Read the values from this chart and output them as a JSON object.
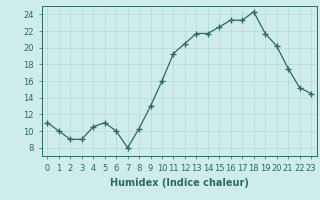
{
  "x": [
    0,
    1,
    2,
    3,
    4,
    5,
    6,
    7,
    8,
    9,
    10,
    11,
    12,
    13,
    14,
    15,
    16,
    17,
    18,
    19,
    20,
    21,
    22,
    23
  ],
  "y": [
    11,
    10,
    9,
    9,
    10.5,
    11,
    10,
    8,
    10.3,
    13,
    16,
    19.3,
    20.5,
    21.7,
    21.7,
    22.5,
    23.3,
    23.3,
    24.3,
    21.7,
    20.2,
    17.5,
    15.2,
    14.5
  ],
  "line_color": "#2d6b5e",
  "bg_color": "#cdecea",
  "grid_color": "#b5d9d6",
  "xlabel": "Humidex (Indice chaleur)",
  "ylim": [
    7,
    25
  ],
  "xlim": [
    -0.5,
    23.5
  ],
  "yticks": [
    8,
    10,
    12,
    14,
    16,
    18,
    20,
    22,
    24
  ],
  "xticks": [
    0,
    1,
    2,
    3,
    4,
    5,
    6,
    7,
    8,
    9,
    10,
    11,
    12,
    13,
    14,
    15,
    16,
    17,
    18,
    19,
    20,
    21,
    22,
    23
  ],
  "tick_fontsize": 6,
  "label_fontsize": 7
}
